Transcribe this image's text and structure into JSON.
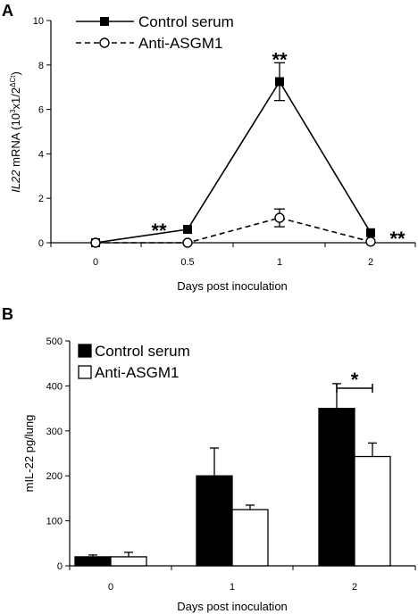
{
  "chart_data": [
    {
      "panel_label": "A",
      "type": "line",
      "x": [
        "0",
        "0.5",
        "1",
        "2"
      ],
      "ylabel_italic": "IL22",
      "ylabel_rest": " mRNA (10",
      "ylabel_sup1": "3",
      "ylabel_mid": "x1/2",
      "ylabel_sup2": "ΔCt",
      "ylabel_end": ")",
      "xlabel": "Days post inoculation",
      "ylim": [
        0,
        10
      ],
      "yticks": [
        "0",
        "2",
        "4",
        "6",
        "8",
        "10"
      ],
      "legend_position": "top-left",
      "series": [
        {
          "name": "Control serum",
          "values": [
            0.0,
            0.6,
            7.25,
            0.45
          ],
          "errors": [
            0.0,
            0.0,
            0.85,
            0.0
          ],
          "marker": "filled-square",
          "line": "solid"
        },
        {
          "name": "Anti-ASGM1",
          "values": [
            0.0,
            0.0,
            1.12,
            0.05
          ],
          "errors": [
            0.0,
            0.0,
            0.4,
            0.0
          ],
          "marker": "open-circle",
          "line": "dashed"
        }
      ],
      "annotations": [
        {
          "x": "0.5",
          "text": "**",
          "side": "left"
        },
        {
          "x": "1",
          "text": "**",
          "side": "above"
        },
        {
          "x": "2",
          "text": "**",
          "side": "right"
        }
      ]
    },
    {
      "panel_label": "B",
      "type": "bar",
      "categories": [
        "0",
        "1",
        "2"
      ],
      "ylabel": "mIL-22 pg/lung",
      "xlabel": "Days post inoculation",
      "ylim": [
        0,
        500
      ],
      "yticks": [
        "0",
        "100",
        "200",
        "300",
        "400",
        "500"
      ],
      "legend_position": "top-left",
      "series": [
        {
          "name": "Control serum",
          "values": [
            20,
            200,
            350
          ],
          "errors": [
            4,
            62,
            55
          ],
          "fill": "#000000"
        },
        {
          "name": "Anti-ASGM1",
          "values": [
            20,
            125,
            243
          ],
          "errors": [
            10,
            10,
            30
          ],
          "fill": "#ffffff"
        }
      ],
      "annotations": [
        {
          "category": "2",
          "text": "*"
        }
      ]
    }
  ]
}
